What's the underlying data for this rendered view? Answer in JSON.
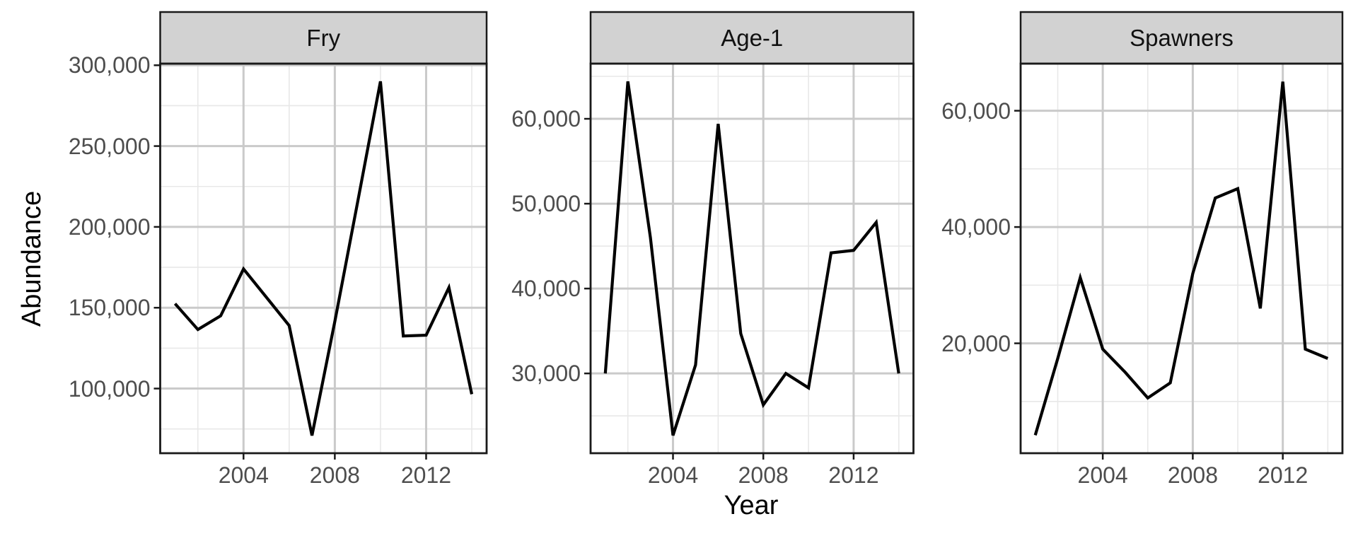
{
  "chart_data": {
    "type": "line",
    "xlabel": "Year",
    "ylabel": "Abundance",
    "legend": "none",
    "grid": "on",
    "years": [
      2001,
      2002,
      2003,
      2004,
      2005,
      2006,
      2007,
      2008,
      2009,
      2010,
      2011,
      2012,
      2013,
      2014
    ],
    "xlim": [
      2000.35,
      2014.65
    ],
    "x_ticks": [
      {
        "value": 2004,
        "label": "2004"
      },
      {
        "value": 2008,
        "label": "2008"
      },
      {
        "value": 2012,
        "label": "2012"
      }
    ],
    "x_minor_ticks": [
      2002,
      2006,
      2010,
      2014
    ],
    "facets": [
      {
        "label": "Fry",
        "values": [
          152500,
          136500,
          145000,
          174000,
          156500,
          139000,
          71000,
          141500,
          215500,
          290000,
          132500,
          133000,
          162500,
          96500
        ],
        "ylim": [
          60000,
          301000
        ],
        "y_ticks": [
          {
            "value": 300000,
            "label": "300,000"
          },
          {
            "value": 250000,
            "label": "250,000"
          },
          {
            "value": 200000,
            "label": "200,000"
          },
          {
            "value": 150000,
            "label": "150,000"
          },
          {
            "value": 100000,
            "label": "100,000"
          }
        ],
        "y_minor_ticks": [
          275000,
          225000,
          175000,
          125000,
          75000
        ]
      },
      {
        "label": "Age-1",
        "values": [
          30000,
          64400,
          46000,
          22700,
          31000,
          59400,
          34700,
          26300,
          30000,
          28300,
          44200,
          44500,
          47800,
          30000
        ],
        "ylim": [
          20600,
          66500
        ],
        "y_ticks": [
          {
            "value": 60000,
            "label": "60,000"
          },
          {
            "value": 50000,
            "label": "50,000"
          },
          {
            "value": 40000,
            "label": "40,000"
          },
          {
            "value": 30000,
            "label": "30,000"
          }
        ],
        "y_minor_ticks": [
          65000,
          55000,
          45000,
          35000,
          25000
        ]
      },
      {
        "label": "Spawners",
        "values": [
          4200,
          17400,
          31300,
          19000,
          15000,
          10600,
          13200,
          32000,
          45000,
          46600,
          26000,
          65000,
          19000,
          17400
        ],
        "ylim": [
          1100,
          68100
        ],
        "y_ticks": [
          {
            "value": 60000,
            "label": "60,000"
          },
          {
            "value": 40000,
            "label": "40,000"
          },
          {
            "value": 20000,
            "label": "20,000"
          }
        ],
        "y_minor_ticks": [
          50000,
          30000,
          10000
        ]
      }
    ],
    "colors": {
      "line": "#000000",
      "major_grid": "#cacaca",
      "minor_grid": "#e8e8e8",
      "panel_border": "#1a1a1a",
      "strip_fill": "#d2d2d2",
      "tick_label": "#4d4d4d",
      "axis_title": "#000000",
      "background": "#ffffff"
    }
  }
}
